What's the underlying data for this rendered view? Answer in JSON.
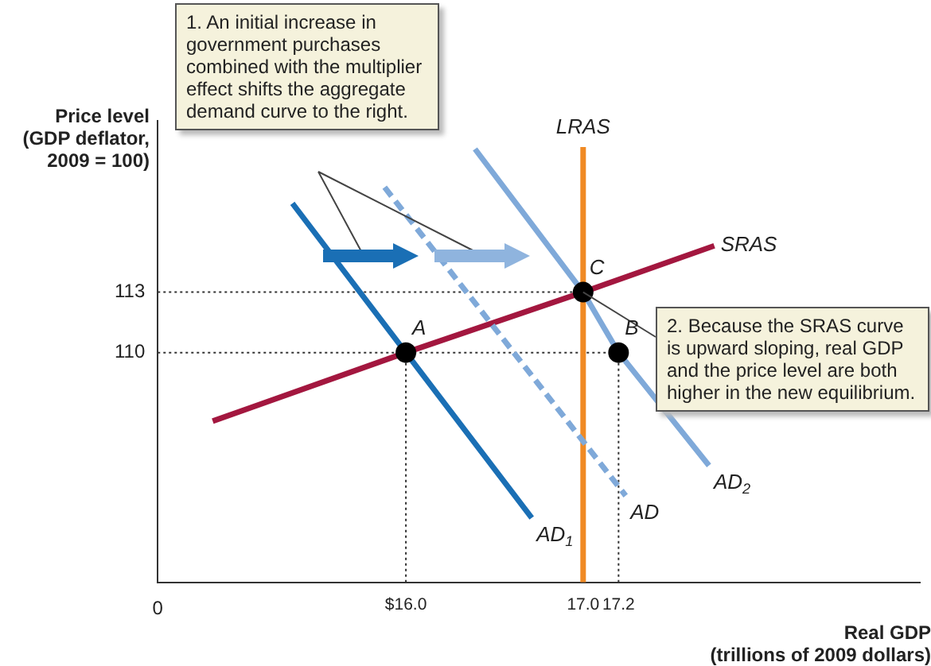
{
  "chart_data": {
    "type": "line",
    "xlabel": "Real GDP\n(trillions of 2009 dollars)",
    "ylabel": "Price level\n(GDP deflator,\n2009 = 100)",
    "xlim": [
      14.6,
      18.9
    ],
    "ylim": [
      98.6,
      121.5
    ],
    "xticks": [
      {
        "value": 16,
        "label": "$16.0"
      },
      {
        "value": 17,
        "label": "17.0"
      },
      {
        "value": 17.2,
        "label": "17.2"
      }
    ],
    "yticks": [
      110,
      113
    ],
    "grid": false,
    "legend": false,
    "series": [
      {
        "name": "AD$_{1}$",
        "color": "#1a6fb5",
        "x": [
          15.36,
          16,
          16.71
        ],
        "values": [
          117.4,
          110,
          101.8
        ]
      },
      {
        "name": "AD",
        "color": "#7fa9d9",
        "line_style": "dashed",
        "x": [
          15.88,
          17.24
        ],
        "values": [
          118.2,
          102.9
        ]
      },
      {
        "name": "AD$_{2}$",
        "color": "#7fa9d9",
        "x": [
          16.39,
          17,
          17.2,
          17.71
        ],
        "values": [
          120.1,
          113,
          110,
          104.4
        ]
      },
      {
        "name": "SRAS",
        "color": "#a3173f",
        "x": [
          14.91,
          16,
          17,
          17.74
        ],
        "values": [
          106.6,
          110,
          113,
          115.3
        ]
      },
      {
        "name": "LRAS",
        "color": "#f08a24",
        "x": [
          17,
          17
        ],
        "values": [
          98.6,
          120.2
        ]
      },
      {
        "type": "scatter",
        "marker": "circle",
        "color": "#000000",
        "x": [
          16,
          17.2,
          17
        ],
        "values": [
          110,
          110,
          113
        ]
      }
    ],
    "ref_lines": [
      {
        "axis": "y",
        "value": 113,
        "line_style": "dotted"
      },
      {
        "axis": "y",
        "value": 110,
        "line_style": "dotted"
      },
      {
        "axis": "x",
        "value": 16,
        "line_style": "dotted"
      },
      {
        "axis": "x",
        "value": 17.2,
        "line_style": "dotted"
      }
    ],
    "annotations": [
      "1. An initial increase in government purchases combined with the multiplier effect shifts the aggregate demand curve to the right.",
      {
        "text": "2. Because the SRAS curve is upward sloping, real GDP and the price level are both higher in the new equilibrium.",
        "x": 17,
        "y": 113
      },
      "0",
      {
        "text": "A",
        "x": 16,
        "y": 110
      },
      {
        "text": "B",
        "x": 17.2,
        "y": 110
      },
      {
        "text": "C",
        "x": 17,
        "y": 113
      }
    ]
  }
}
